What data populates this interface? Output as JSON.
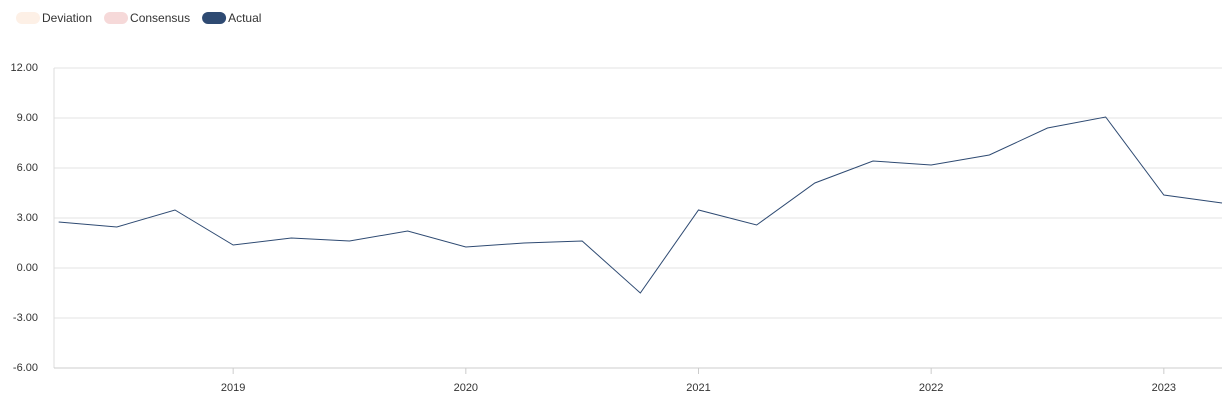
{
  "chart_data": {
    "type": "line",
    "inactive_legend": [
      {
        "name": "Deviation",
        "color": "#fdf0e6"
      },
      {
        "name": "Consensus",
        "color": "#f6d9d9"
      }
    ],
    "x": [
      2018.25,
      2018.5,
      2018.75,
      2019.0,
      2019.25,
      2019.5,
      2019.75,
      2020.0,
      2020.25,
      2020.5,
      2020.75,
      2021.0,
      2021.25,
      2021.5,
      2021.75,
      2022.0,
      2022.25,
      2022.5,
      2022.75,
      2023.0,
      2023.25
    ],
    "series": [
      {
        "name": "Actual",
        "color": "#2e4a72",
        "values": [
          2.76,
          2.46,
          3.48,
          1.38,
          1.8,
          1.62,
          2.22,
          1.26,
          1.5,
          1.62,
          -1.5,
          3.48,
          2.58,
          5.1,
          6.42,
          6.18,
          6.78,
          8.4,
          9.06,
          4.38,
          3.9
        ]
      }
    ],
    "xlim": [
      2018.23,
      2023.25
    ],
    "xticks": [
      2019,
      2020,
      2021,
      2022,
      2023
    ],
    "ylim": [
      -6,
      12
    ],
    "yticks": [
      {
        "value": 12,
        "label": "12.00"
      },
      {
        "value": 9,
        "label": "9.00"
      },
      {
        "value": 6,
        "label": "6.00"
      },
      {
        "value": 3,
        "label": "3.00"
      },
      {
        "value": 0,
        "label": "0.00"
      },
      {
        "value": -3,
        "label": "-3.00"
      },
      {
        "value": -6,
        "label": "-6.00"
      }
    ],
    "grid": true
  }
}
